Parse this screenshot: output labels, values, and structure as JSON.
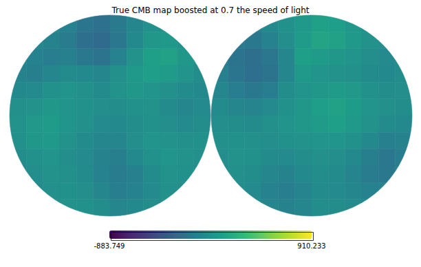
{
  "chart_data": {
    "type": "heatmap",
    "title": "True CMB map boosted at 0.7 the speed of light",
    "color": "viridis",
    "tick_labels": false,
    "colorbar": {
      "range": [
        -883.749,
        910.233
      ],
      "ticks": [
        -883.749,
        910.233
      ]
    },
    "cells": [
      [
        [
          null,
          null,
          -40,
          -90,
          -180,
          -220,
          -150,
          -60,
          20,
          10,
          null,
          null
        ],
        [
          null,
          -60,
          -80,
          -140,
          -230,
          -260,
          -170,
          -40,
          60,
          80,
          30,
          null
        ],
        [
          -50,
          -90,
          -120,
          -100,
          -160,
          -190,
          -90,
          30,
          120,
          140,
          60,
          20
        ],
        [
          -80,
          -110,
          -60,
          -20,
          -40,
          -60,
          10,
          80,
          110,
          90,
          40,
          -10
        ],
        [
          -40,
          -30,
          20,
          40,
          10,
          -20,
          30,
          60,
          40,
          10,
          -20,
          -40
        ],
        [
          10,
          30,
          60,
          40,
          20,
          0,
          -10,
          20,
          30,
          -20,
          -50,
          -30
        ],
        [
          30,
          70,
          90,
          50,
          10,
          -30,
          -40,
          -10,
          20,
          0,
          -30,
          -10
        ],
        [
          20,
          60,
          80,
          30,
          -20,
          -60,
          -50,
          0,
          40,
          30,
          10,
          20
        ],
        [
          -10,
          20,
          40,
          0,
          -30,
          -80,
          -110,
          -40,
          20,
          50,
          30,
          10
        ],
        [
          -30,
          0,
          30,
          10,
          -20,
          -90,
          -140,
          -100,
          -20,
          30,
          20,
          0
        ],
        [
          null,
          -20,
          10,
          20,
          0,
          -50,
          -120,
          -90,
          -30,
          10,
          0,
          null
        ],
        [
          null,
          null,
          0,
          30,
          20,
          -10,
          -60,
          -40,
          -10,
          10,
          null,
          null
        ]
      ],
      [
        [
          null,
          null,
          -80,
          -40,
          20,
          80,
          130,
          110,
          60,
          20,
          null,
          null
        ],
        [
          null,
          -150,
          -160,
          -90,
          0,
          90,
          160,
          140,
          80,
          30,
          0,
          null
        ],
        [
          -120,
          -200,
          -230,
          -170,
          -50,
          120,
          90,
          60,
          40,
          0,
          -30,
          -20
        ],
        [
          -100,
          -180,
          -240,
          -200,
          -60,
          80,
          40,
          30,
          10,
          -20,
          -40,
          -10
        ],
        [
          -60,
          -120,
          -160,
          -120,
          -10,
          40,
          60,
          90,
          70,
          20,
          -10,
          0
        ],
        [
          -20,
          -60,
          -70,
          -30,
          20,
          60,
          110,
          140,
          100,
          40,
          10,
          -10
        ],
        [
          0,
          -10,
          -20,
          10,
          40,
          60,
          90,
          120,
          80,
          30,
          -20,
          -40
        ],
        [
          10,
          20,
          10,
          0,
          20,
          30,
          40,
          50,
          20,
          -40,
          -100,
          -80
        ],
        [
          0,
          30,
          20,
          -20,
          -30,
          -10,
          10,
          0,
          -40,
          -110,
          -170,
          -120
        ],
        [
          -20,
          10,
          -10,
          -60,
          -80,
          -40,
          -10,
          -20,
          -70,
          -140,
          -160,
          -90
        ],
        [
          null,
          -10,
          -30,
          -90,
          -120,
          -70,
          -20,
          -30,
          -60,
          -90,
          -80,
          null
        ],
        [
          null,
          null,
          -20,
          -60,
          -80,
          -50,
          -10,
          -10,
          -30,
          -40,
          null,
          null
        ]
      ]
    ]
  }
}
